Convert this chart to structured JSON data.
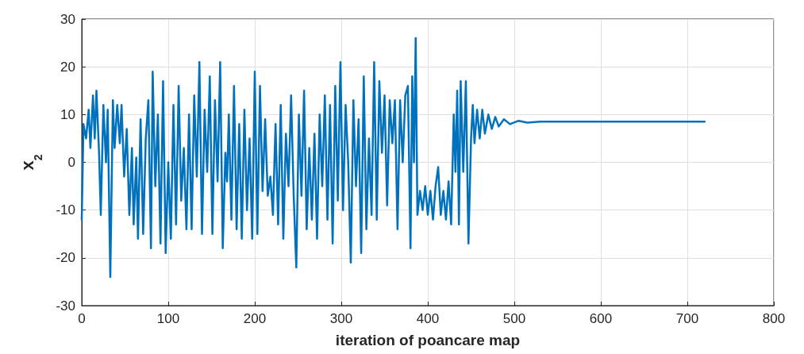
{
  "chart_data": {
    "type": "line",
    "xlabel": "iteration of poancare map",
    "ylabel": "x$_{2}$",
    "xlim": [
      0,
      800
    ],
    "xticks": [
      0,
      100,
      200,
      300,
      400,
      500,
      600,
      700,
      800
    ],
    "ylim": [
      -30,
      30
    ],
    "yticks": [
      -30,
      -20,
      -10,
      0,
      10,
      20,
      30
    ],
    "grid": true,
    "marker": "none",
    "line_style": "solid",
    "series": [
      {
        "color": "#0072bd",
        "x": [
          0,
          2,
          5,
          8,
          10,
          13,
          15,
          17,
          20,
          22,
          25,
          28,
          30,
          33,
          36,
          38,
          41,
          44,
          46,
          49,
          52,
          55,
          58,
          60,
          63,
          65,
          68,
          71,
          74,
          77,
          80,
          82,
          85,
          88,
          91,
          94,
          97,
          100,
          103,
          106,
          109,
          112,
          115,
          118,
          121,
          124,
          127,
          130,
          133,
          136,
          139,
          142,
          145,
          148,
          151,
          154,
          157,
          160,
          163,
          166,
          168,
          170,
          173,
          176,
          179,
          182,
          185,
          188,
          191,
          194,
          197,
          200,
          203,
          206,
          209,
          212,
          215,
          218,
          221,
          224,
          227,
          230,
          233,
          236,
          239,
          242,
          245,
          248,
          251,
          254,
          257,
          260,
          263,
          266,
          269,
          272,
          275,
          278,
          281,
          284,
          287,
          290,
          293,
          296,
          299,
          302,
          305,
          308,
          311,
          314,
          317,
          320,
          323,
          326,
          329,
          332,
          335,
          338,
          341,
          344,
          347,
          350,
          353,
          356,
          359,
          362,
          365,
          368,
          371,
          374,
          377,
          380,
          382,
          384,
          386,
          388,
          391,
          394,
          397,
          400,
          403,
          406,
          409,
          412,
          415,
          418,
          421,
          424,
          427,
          430,
          432,
          434,
          436,
          438,
          441,
          444,
          447,
          450,
          452,
          454,
          457,
          460,
          463,
          466,
          470,
          474,
          478,
          482,
          488,
          495,
          505,
          515,
          530,
          720
        ],
        "values": [
          -12,
          8,
          5,
          11,
          3,
          14,
          5,
          15,
          2,
          -11,
          12,
          0,
          11,
          -24,
          13,
          3,
          12,
          4,
          12,
          -3,
          7,
          -11,
          3,
          -13,
          1,
          -16,
          9,
          -15,
          5,
          13,
          -18,
          19,
          -5,
          10,
          -17,
          17,
          -19,
          0,
          -16,
          12,
          -13,
          16,
          -8,
          3,
          -14,
          10,
          -14,
          14,
          -3,
          21,
          -15,
          11,
          -2,
          18,
          -15,
          13,
          -4,
          21,
          -18,
          2,
          -4,
          10,
          -12,
          16,
          -14,
          8,
          -16,
          11,
          -10,
          5,
          -16,
          19,
          -15,
          16,
          -6,
          9,
          -7,
          -3,
          -11,
          8,
          -13,
          12,
          -16,
          6,
          -5,
          14,
          -7,
          -22,
          10,
          -7,
          15,
          -14,
          3,
          -12,
          6,
          -16,
          10,
          -5,
          14,
          -12,
          12,
          -17,
          16,
          -8,
          21,
          -10,
          12,
          0,
          -21,
          13,
          -5,
          9,
          -19,
          18,
          -14,
          5,
          -11,
          21,
          -12,
          17,
          2,
          14,
          -9,
          13,
          4,
          13,
          -14,
          13,
          0,
          14,
          16,
          -18,
          18,
          0,
          26,
          -11,
          -6,
          -10,
          -5,
          -11,
          -6,
          -12,
          -5,
          -1,
          -11,
          -6,
          -12,
          -4,
          -13,
          10,
          -2,
          15,
          -13,
          17,
          -2,
          17,
          -17,
          5,
          12,
          4,
          11,
          5,
          11,
          6,
          10,
          7,
          9.5,
          7.5,
          9,
          8,
          8.7,
          8.3,
          8.5,
          8.5
        ]
      }
    ]
  }
}
